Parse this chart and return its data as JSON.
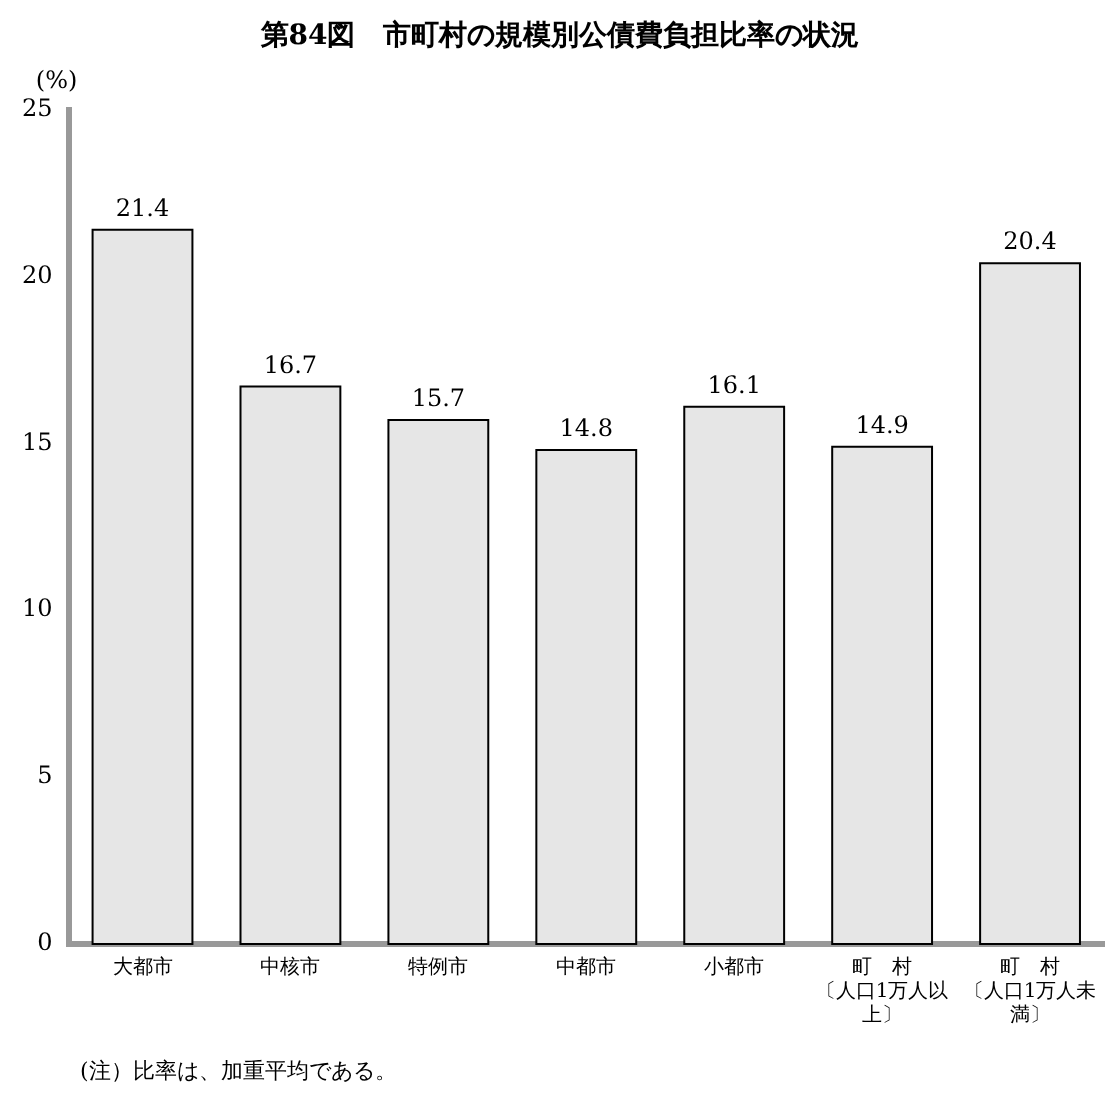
{
  "chart_data": {
    "type": "bar",
    "title": "第84図　市町村の規模別公債費負担比率の状況",
    "ylabel": "(%)",
    "categories": [
      "大都市",
      "中核市",
      "特例市",
      "中都市",
      "小都市",
      "町　村〔人口1万人以上〕",
      "町　村〔人口1万人未満〕"
    ],
    "values": [
      21.4,
      16.7,
      15.7,
      14.8,
      16.1,
      14.9,
      20.4
    ],
    "color": "#e6e6e6",
    "ylim": [
      0,
      25
    ],
    "yticks": [
      0,
      5,
      10,
      15,
      20,
      25
    ],
    "grid": false,
    "legend": false,
    "data_labels": true,
    "annotations": [
      "(注）比率は、加重平均である。"
    ]
  }
}
